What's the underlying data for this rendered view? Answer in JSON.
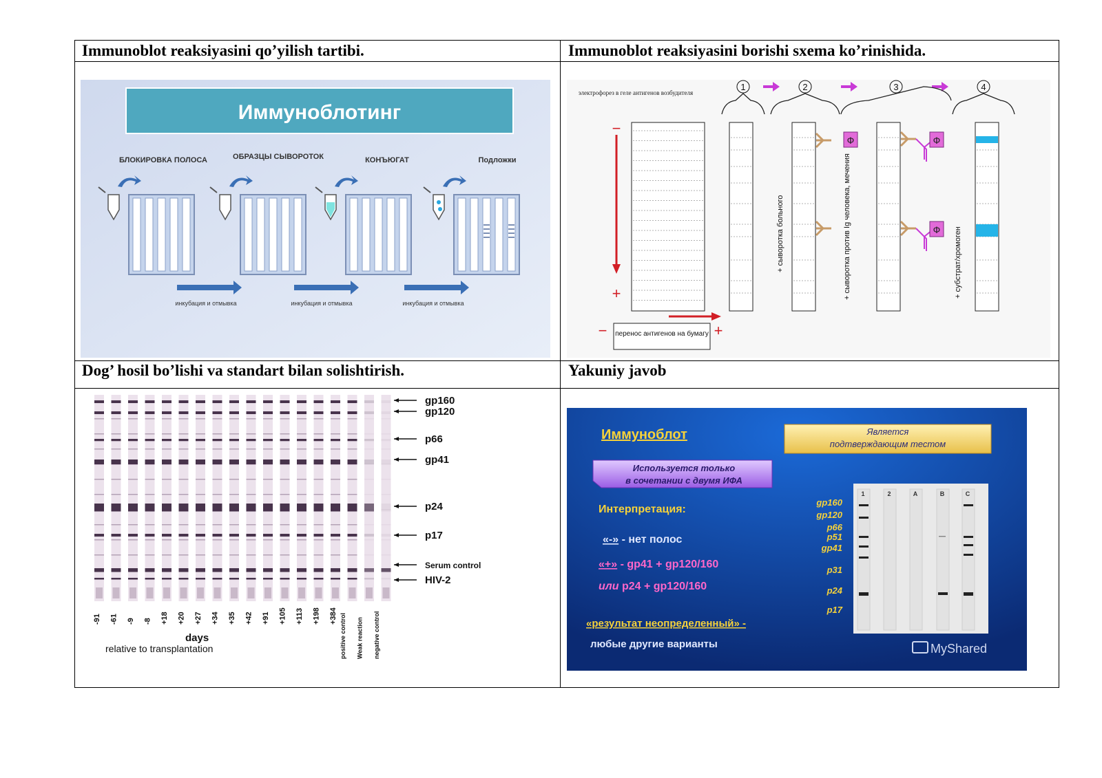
{
  "cells": [
    {
      "heading": "Immunoblot reaksiyasini qo’yilish tartibi."
    },
    {
      "heading": "Immunoblot reaksiyasini borishi  sxema ko’rinishida."
    },
    {
      "heading": "Dog’ hosil bo’lishi va standart bilan solishtirish."
    },
    {
      "heading": "Yakuniy javob"
    }
  ],
  "fig1": {
    "title": "Иммуноблотинг",
    "steps": [
      "БЛОКИРОВКА ПОЛОСА",
      "ОБРАЗЦЫ СЫВОРОТОК",
      "КОНЪЮГАТ",
      "Подложки"
    ],
    "arrow_label": "инкубация и отмывка"
  },
  "fig2": {
    "step_numbers": [
      "1",
      "2",
      "3",
      "4"
    ],
    "electrophoresis_label": "электрофорез в геле антигенов возбудителя",
    "transfer_label": "перенос антигенов на бумагу",
    "serum_label": "+ сыворотка больного",
    "anti_ig_label": "+ сыворотка против Ig человека, мечения",
    "substrate_label": "+ субстрат/хромоген",
    "enzyme_symbol": "Ф",
    "minus": "−",
    "plus": "+"
  },
  "fig3": {
    "band_labels": [
      "gp160",
      "gp120",
      "p66",
      "gp41",
      "p24",
      "p17",
      "Serum control",
      "HIV-2"
    ],
    "day_labels": [
      "-91",
      "-61",
      "-9",
      "-8",
      "+18",
      "+20",
      "+27",
      "+34",
      "+35",
      "+42",
      "+91",
      "+105",
      "+113",
      "+198",
      "+384"
    ],
    "control_labels": [
      "positive control",
      "Weak reaction",
      "negative control"
    ],
    "axis_title": "days",
    "axis_subtitle": "relative to transplantation"
  },
  "fig4": {
    "title": "Иммуноблот",
    "badge": "Является подтверждающим тестом",
    "badge_line1": "Является",
    "badge_line2": "подтверждающим тестом",
    "purple_line1": "Используется только",
    "purple_line2": "в сочетании с двумя ИФА",
    "interpretation": "Интерпретация:",
    "neg_sign": "«-»",
    "neg_text": " - нет полос",
    "pos_sign": "«+»",
    "pos_text": " - gp41 + gp120/160",
    "or_word": "или",
    "or_text": " p24 + gp120/160",
    "indeterminate": "«результат неопределенный» -",
    "other": "любые другие варианты",
    "blot_labels": [
      "gp160",
      "gp120",
      "p66",
      "p51",
      "gp41",
      "p31",
      "p24",
      "p17"
    ],
    "lane_headers": [
      "1",
      "2",
      "A",
      "B",
      "C"
    ],
    "watermark": "MyShared"
  }
}
